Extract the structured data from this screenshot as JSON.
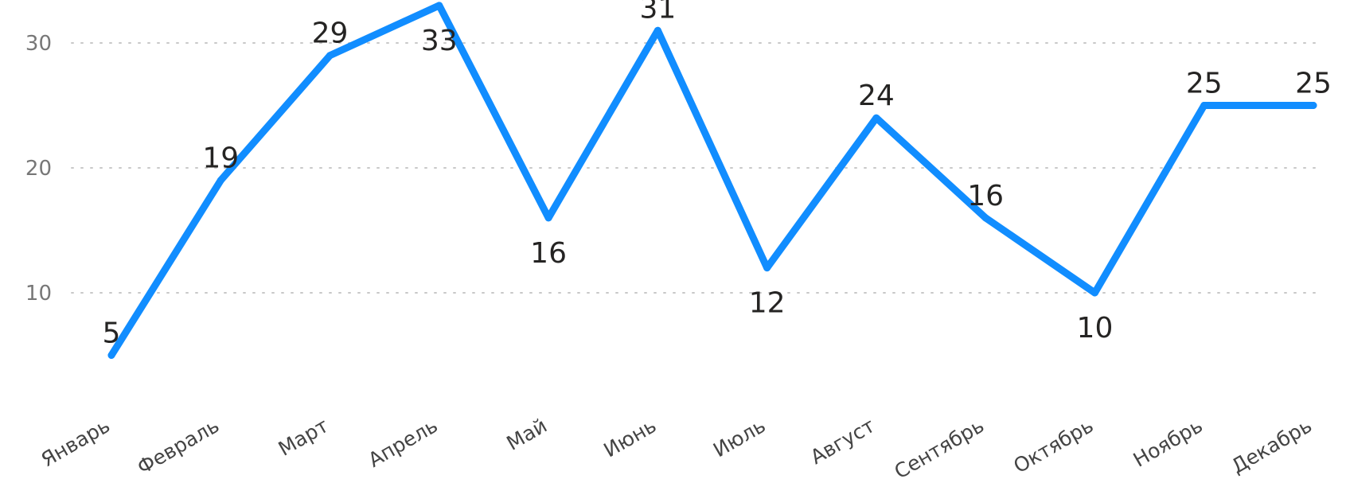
{
  "chart_data": {
    "type": "line",
    "title": "",
    "xlabel": "",
    "ylabel": "",
    "categories": [
      "Январь",
      "Февраль",
      "Март",
      "Апрель",
      "Май",
      "Июнь",
      "Июль",
      "Август",
      "Сентябрь",
      "Октябрь",
      "Ноябрь",
      "Декабрь"
    ],
    "series": [
      {
        "values": [
          5,
          19,
          29,
          33,
          16,
          31,
          12,
          24,
          16,
          10,
          25,
          25
        ],
        "color": "#118DFF"
      }
    ],
    "ylim": [
      0,
      35
    ],
    "yticks": [
      10,
      20,
      30
    ],
    "grid": true,
    "gridStyle": "dotted",
    "legend": "none",
    "dataLabels": true,
    "dataLabelPlacement": [
      "above",
      "above",
      "above",
      "below",
      "below",
      "above",
      "below",
      "above",
      "above",
      "below",
      "above",
      "above"
    ]
  }
}
